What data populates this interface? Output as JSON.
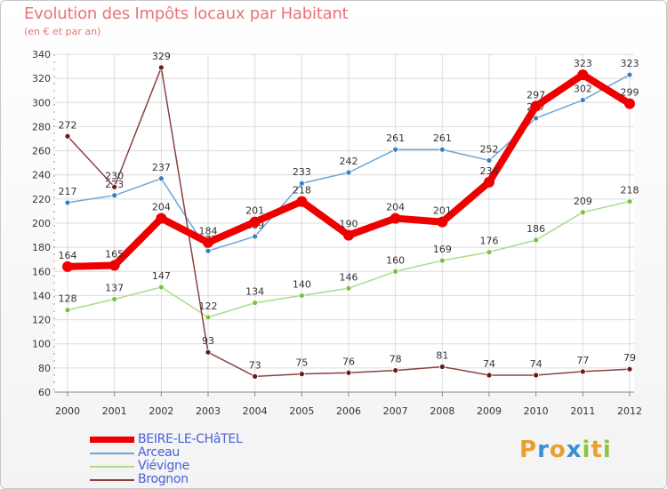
{
  "chart_data": {
    "type": "line",
    "title": "Evolution des Impôts locaux par Habitant",
    "subtitle": "(en € et par an)",
    "xlabel": "",
    "ylabel": "",
    "ylim": [
      60,
      340
    ],
    "yticks": [
      60,
      80,
      100,
      120,
      140,
      160,
      180,
      200,
      220,
      240,
      260,
      280,
      300,
      320,
      340
    ],
    "categories": [
      "2000",
      "2001",
      "2002",
      "2003",
      "2004",
      "2005",
      "2006",
      "2007",
      "2008",
      "2009",
      "2010",
      "2011",
      "2012"
    ],
    "grid": true,
    "legend_position": "bottom-left",
    "series": [
      {
        "name": "Arceau",
        "color": "#6ea6d8",
        "marker": "#3a7fc4",
        "values": [
          217,
          223,
          237,
          177,
          189,
          233,
          242,
          261,
          261,
          252,
          287,
          302,
          323
        ]
      },
      {
        "name": "Viévigne",
        "color": "#a8dc86",
        "marker": "#76c43c",
        "values": [
          128,
          137,
          147,
          122,
          134,
          140,
          146,
          160,
          169,
          176,
          186,
          209,
          218
        ]
      },
      {
        "name": "Brognon",
        "color": "#8b4040",
        "marker": "#6a1a1a",
        "values": [
          272,
          230,
          329,
          93,
          73,
          75,
          76,
          78,
          81,
          74,
          74,
          77,
          79
        ]
      },
      {
        "name": "BEIRE-LE-CHâTEL",
        "color": "#ee0000",
        "marker": "#ee0000",
        "values": [
          164,
          165,
          204,
          184,
          201,
          218,
          190,
          204,
          201,
          234,
          297,
          323,
          299
        ]
      }
    ]
  },
  "legend": [
    {
      "name": "BEIRE-LE-CHâTEL",
      "color": "#ee0000"
    },
    {
      "name": "Arceau",
      "color": "#6ea6d8"
    },
    {
      "name": "Viévigne",
      "color": "#a8dc86"
    },
    {
      "name": "Brognon",
      "color": "#8b4040"
    }
  ],
  "logo": {
    "letters": [
      "P",
      "r",
      "o",
      "x",
      "i",
      "t",
      "i"
    ],
    "colors": [
      "#e8a030",
      "#3a8fd0",
      "#e8a030",
      "#3a8fd0",
      "#8cc63f",
      "#e8a030",
      "#8cc63f"
    ]
  }
}
